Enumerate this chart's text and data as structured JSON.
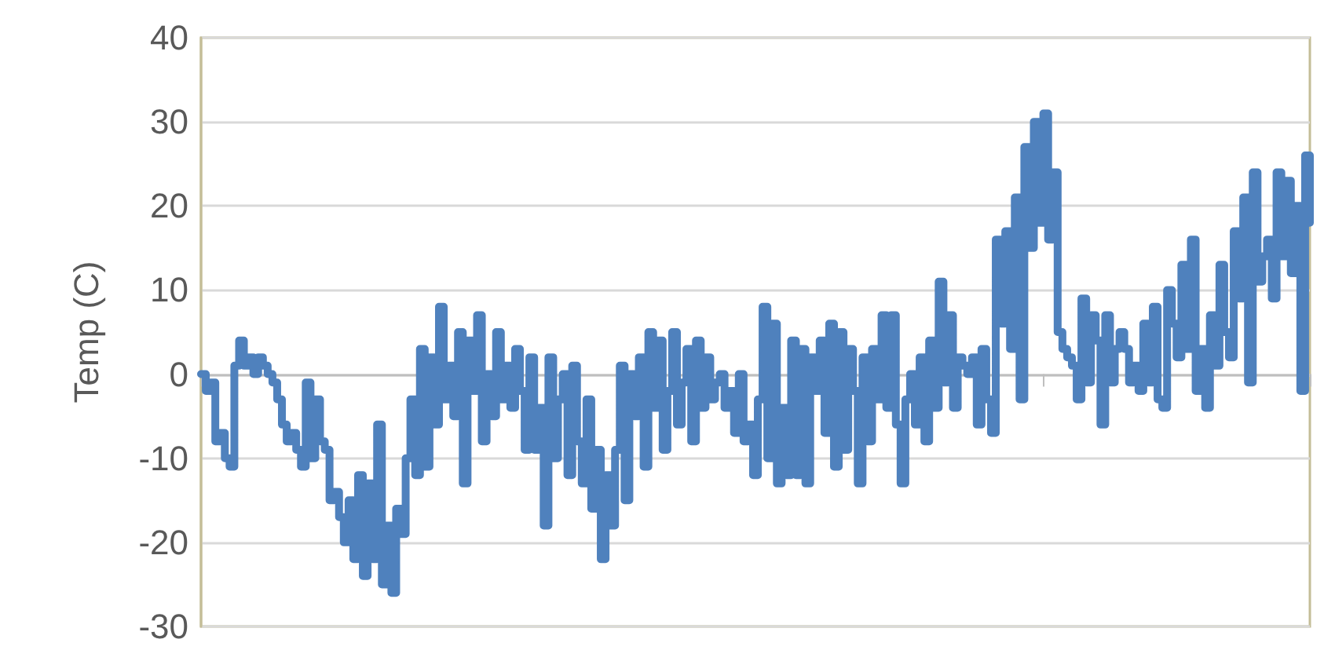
{
  "chart_data": {
    "type": "step",
    "ylabel": "Temp (C)",
    "categories": [
      null,
      null,
      null,
      null,
      null,
      null,
      null,
      null,
      null,
      null,
      null,
      null,
      null,
      null,
      null,
      null,
      null,
      null,
      null,
      null,
      null,
      null,
      null,
      null,
      null,
      null,
      null,
      null,
      null,
      null,
      null,
      null,
      null,
      null,
      null,
      null,
      null,
      null,
      null,
      null,
      null,
      null,
      null,
      null,
      null,
      null,
      null,
      null,
      null,
      null,
      null,
      null,
      null,
      null,
      null,
      null,
      null,
      null,
      null,
      null,
      null,
      null,
      null,
      null,
      null,
      null,
      null,
      null,
      null,
      null,
      null,
      null,
      null,
      null,
      null,
      null,
      null,
      null,
      null,
      null,
      null,
      null,
      null,
      null,
      null,
      null,
      null,
      null,
      null,
      null,
      null,
      null,
      null,
      null,
      null,
      null,
      null,
      null,
      null,
      null,
      null,
      null,
      null,
      null,
      null,
      null,
      null,
      null,
      null,
      null,
      null,
      null,
      null,
      null,
      null,
      null,
      null,
      null,
      null,
      null,
      null,
      null,
      null,
      null,
      null,
      null,
      null,
      null,
      null,
      null,
      null,
      null,
      null,
      null,
      null,
      null,
      null,
      null,
      null,
      null,
      null,
      null,
      null,
      null,
      null,
      null,
      null,
      null,
      null,
      null,
      null,
      null,
      null,
      null,
      null,
      null,
      null,
      null,
      null,
      null,
      null,
      null,
      null,
      null,
      null,
      null,
      null,
      null,
      null,
      null,
      null,
      null,
      null,
      null,
      null,
      null,
      null,
      null,
      null,
      null,
      null,
      null,
      null,
      null,
      null,
      null,
      null,
      null,
      null,
      null,
      null,
      null,
      null,
      null,
      null,
      null,
      null,
      null,
      null,
      null,
      null,
      null,
      null,
      null,
      null,
      null,
      null,
      null,
      null,
      null,
      null,
      null,
      null,
      null,
      null,
      null,
      null,
      null,
      null,
      null,
      null,
      null,
      null,
      null,
      null,
      null,
      null,
      null,
      null,
      null,
      null,
      null,
      null,
      null
    ],
    "series": [
      {
        "color": "#4f81bd",
        "values": [
          0,
          -2,
          -1,
          -8,
          -7,
          -10,
          -11,
          1,
          4,
          1,
          2,
          0,
          2,
          1,
          0,
          -1,
          -3,
          -6,
          -8,
          -7,
          -9,
          -11,
          -1,
          -10,
          -3,
          -8,
          -9,
          -15,
          -14,
          -17,
          -20,
          -15,
          -22,
          -12,
          -24,
          -13,
          -22,
          -6,
          -25,
          -18,
          -26,
          -16,
          -19,
          -10,
          -3,
          -12,
          3,
          -11,
          2,
          -6,
          8,
          -3,
          1,
          -5,
          5,
          -13,
          4,
          -2,
          7,
          -8,
          0,
          -5,
          5,
          -3,
          1,
          -4,
          3,
          -2,
          -9,
          2,
          -9,
          -4,
          -18,
          2,
          -10,
          -3,
          0,
          -12,
          1,
          -8,
          -13,
          -3,
          -16,
          -9,
          -22,
          -12,
          -18,
          -9,
          1,
          -15,
          0,
          -5,
          2,
          -11,
          5,
          -4,
          4,
          -9,
          -2,
          5,
          -6,
          -1,
          3,
          -8,
          4,
          -4,
          2,
          -3,
          -1,
          0,
          -4,
          -2,
          -7,
          0,
          -8,
          -6,
          -12,
          -3,
          8,
          -10,
          6,
          -13,
          -4,
          -12,
          4,
          -12,
          3,
          -13,
          2,
          -2,
          4,
          -7,
          6,
          -11,
          5,
          -9,
          3,
          -2,
          -13,
          2,
          -8,
          3,
          -3,
          7,
          -4,
          7,
          -6,
          -13,
          -3,
          0,
          -6,
          2,
          -8,
          4,
          -4,
          11,
          -1,
          7,
          -4,
          2,
          1,
          0,
          2,
          -6,
          3,
          -3,
          -7,
          16,
          6,
          17,
          3,
          21,
          -3,
          27,
          15,
          30,
          18,
          31,
          16,
          24,
          5,
          3,
          2,
          1,
          -3,
          9,
          -1,
          7,
          4,
          -6,
          7,
          -1,
          3,
          5,
          3,
          -1,
          1,
          -2,
          6,
          -1,
          8,
          -3,
          -4,
          10,
          6,
          2,
          13,
          3,
          16,
          -2,
          3,
          -4,
          7,
          1,
          13,
          5,
          2,
          17,
          9,
          21,
          -1,
          24,
          11,
          14,
          16,
          9,
          24,
          14,
          23,
          12,
          20,
          -2,
          26,
          18
        ]
      }
    ],
    "ylim": [
      -30,
      40
    ],
    "yticks": [
      -30,
      -20,
      -10,
      0,
      10,
      20,
      30,
      40
    ],
    "grid": "y",
    "line_style": "solid",
    "tick_labels": "y"
  }
}
